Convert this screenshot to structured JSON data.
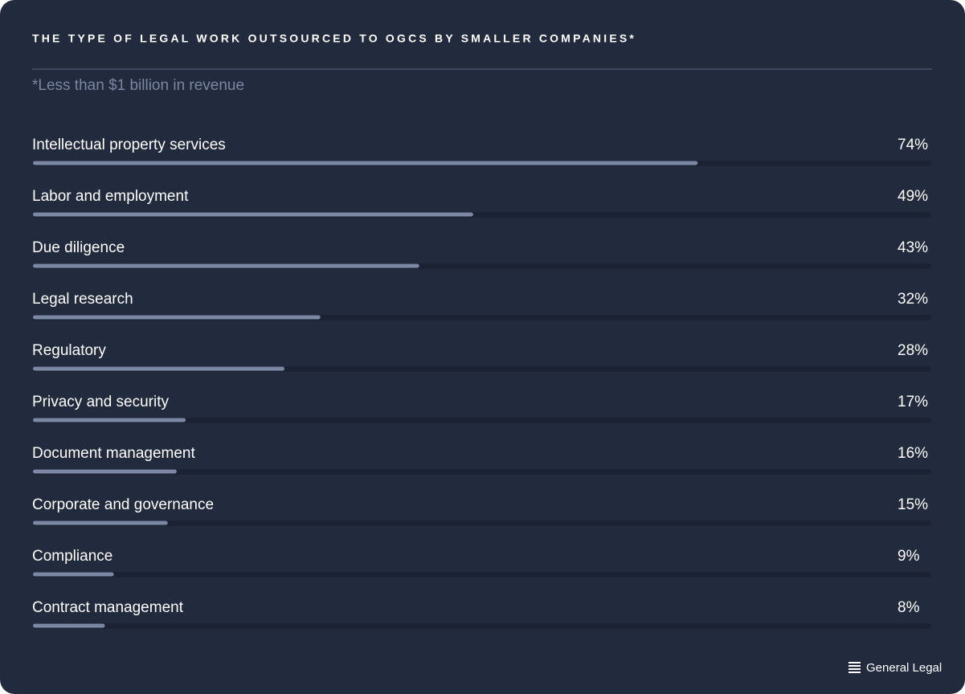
{
  "chart_data": {
    "type": "bar",
    "orientation": "horizontal",
    "title": "THE TYPE OF LEGAL WORK OUTSOURCED TO OGCS BY SMALLER COMPANIES*",
    "subtitle": "*Less than $1 billion in revenue",
    "categories": [
      "Intellectual property services",
      "Labor and employment",
      "Due diligence",
      "Legal research",
      "Regulatory",
      "Privacy and security",
      "Document management",
      "Corporate and governance",
      "Compliance",
      "Contract management"
    ],
    "values": [
      74,
      49,
      43,
      32,
      28,
      17,
      16,
      15,
      9,
      8
    ],
    "value_labels": [
      "74%",
      "49%",
      "43%",
      "32%",
      "28%",
      "17%",
      "16%",
      "15%",
      "9%",
      "8%"
    ],
    "color": "#7b87a3",
    "xlim": [
      0,
      100
    ],
    "brand": "General Legal"
  }
}
